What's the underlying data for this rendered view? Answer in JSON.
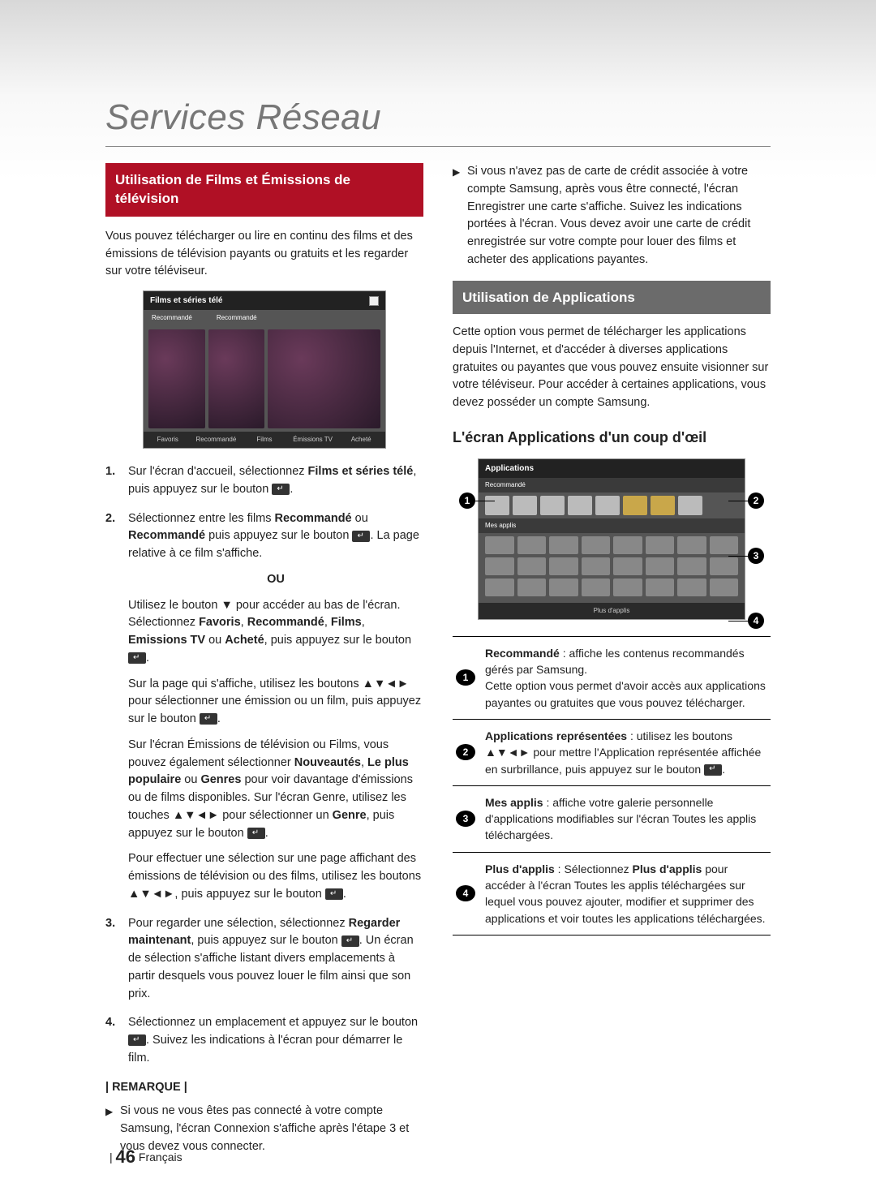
{
  "chapter_title": "Services Réseau",
  "page": {
    "number": "46",
    "lang": "Français",
    "bar": "|"
  },
  "left": {
    "header": "Utilisation de Films et Émissions de télévision",
    "intro": "Vous pouvez télécharger ou lire en continu des films et des émissions de télévision payants ou gratuits et les regarder sur votre téléviseur.",
    "screenshot": {
      "title": "Films et séries télé",
      "tab1": "Recommandé",
      "tab2": "Recommandé",
      "footer": [
        "Favoris",
        "Recommandé",
        "Films",
        "Émissions TV",
        "Acheté"
      ]
    },
    "steps": [
      {
        "n": "1.",
        "paras": [
          "Sur l'écran d'accueil, sélectionnez <b>Films et séries télé</b>, puis appuyez sur le bouton {E}."
        ]
      },
      {
        "n": "2.",
        "paras": [
          "Sélectionnez entre les films <b>Recommandé</b> ou <b>Recommandé</b> puis appuyez sur le bouton {E}. La page relative à ce film s'affiche.",
          "{OU}",
          "Utilisez le bouton ▼ pour accéder au bas de l'écran. Sélectionnez <b>Favoris</b>, <b>Recommandé</b>, <b>Films</b>, <b>Emissions TV</b> ou <b>Acheté</b>, puis appuyez sur le bouton {E}.",
          "Sur la page qui s'affiche, utilisez les boutons ▲▼◄► pour sélectionner une émission ou un film, puis appuyez sur le bouton {E}.",
          "Sur l'écran Émissions de télévision ou Films, vous pouvez également sélectionner <b>Nouveautés</b>, <b>Le plus populaire</b> ou <b>Genres</b> pour voir davantage d'émissions ou de films disponibles. Sur l'écran Genre, utilisez les touches ▲▼◄► pour sélectionner un <b>Genre</b>, puis appuyez sur le bouton {E}.",
          "Pour effectuer une sélection sur une page affichant des émissions de télévision ou des films, utilisez les boutons ▲▼◄►, puis appuyez sur le bouton {E}."
        ]
      },
      {
        "n": "3.",
        "paras": [
          "Pour regarder une sélection, sélectionnez <b>Regarder maintenant</b>, puis appuyez sur le bouton {E}. Un écran de sélection s'affiche listant divers emplacements à partir desquels vous pouvez louer le film ainsi que son prix."
        ]
      },
      {
        "n": "4.",
        "paras": [
          "Sélectionnez un emplacement et appuyez sur le bouton {E}. Suivez les indications à l'écran pour démarrer le film."
        ]
      }
    ],
    "remark_label": "| REMARQUE |",
    "remarks": [
      "Si vous ne vous êtes pas connecté à votre compte Samsung, l'écran Connexion s'affiche après l'étape 3 et vous devez vous connecter."
    ]
  },
  "right": {
    "top_bullet": "Si vous n'avez pas de carte de crédit associée à votre compte Samsung, après vous être connecté, l'écran Enregistrer une carte s'affiche. Suivez les indications portées à l'écran. Vous devez avoir une carte de crédit enregistrée sur votre compte pour louer des films et acheter des applications payantes.",
    "header": "Utilisation de Applications",
    "intro": "Cette option vous permet de télécharger les applications depuis l'Internet, et d'accéder à diverses applications gratuites ou payantes que vous pouvez ensuite visionner sur votre téléviseur. Pour accéder à certaines applications, vous devez posséder un compte Samsung.",
    "sub": "L'écran Applications d'un coup d'œil",
    "apps_shot": {
      "title": "Applications",
      "rec": "Recommandé",
      "my": "Mes applis",
      "more": "Plus d'applis"
    },
    "callouts": [
      {
        "n": "1",
        "html": "<b>Recommandé</b> : affiche les contenus recommandés gérés par Samsung.<br>Cette option vous permet d'avoir accès aux applications payantes ou gratuites que vous pouvez télécharger."
      },
      {
        "n": "2",
        "html": "<b>Applications représentées</b> : utilisez les boutons ▲▼◄► pour mettre l'Application représentée affichée en surbrillance, puis appuyez sur le bouton {E}."
      },
      {
        "n": "3",
        "html": "<b>Mes applis</b> : affiche votre galerie personnelle d'applications modifiables sur l'écran Toutes les applis téléchargées."
      },
      {
        "n": "4",
        "html": "<b>Plus d'applis</b> : Sélectionnez <b>Plus d'applis</b> pour accéder à l'écran Toutes les applis téléchargées sur lequel vous pouvez ajouter, modifier et supprimer des applications et voir toutes les applications téléchargées."
      }
    ]
  }
}
